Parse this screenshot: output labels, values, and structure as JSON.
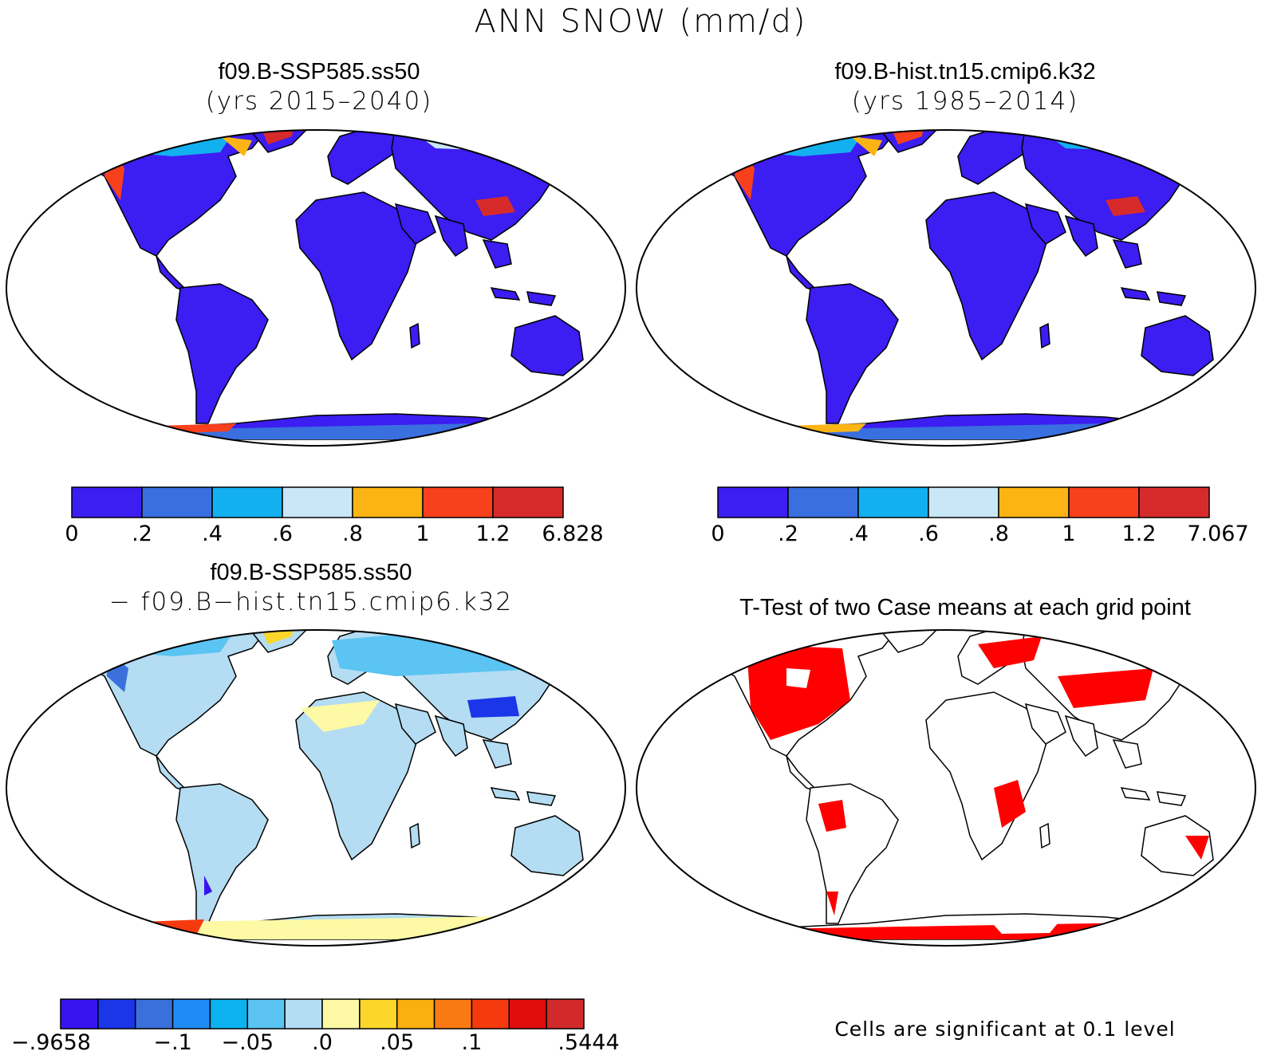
{
  "figure": {
    "title": "ANN SNOW (mm/d)"
  },
  "panels": [
    {
      "id": "case1",
      "title_line1": "f09.B-SSP585.ss50",
      "title_line2": "(yrs 2015–2040)",
      "colorbar": {
        "colors": [
          "#3c1df2",
          "#3a6fe0",
          "#13b0f0",
          "#c8e7f7",
          "#fbb413",
          "#f9401d",
          "#d72b2b"
        ],
        "labels": [
          "0",
          ".2",
          ".4",
          ".6",
          ".8",
          "1",
          "1.2",
          "6.828"
        ]
      }
    },
    {
      "id": "case2",
      "title_line1": "f09.B-hist.tn15.cmip6.k32",
      "title_line2": "(yrs 1985–2014)",
      "colorbar": {
        "colors": [
          "#3c1df2",
          "#3a6fe0",
          "#13b0f0",
          "#c8e7f7",
          "#fbb413",
          "#f9401d",
          "#d72b2b"
        ],
        "labels": [
          "0",
          ".2",
          ".4",
          ".6",
          ".8",
          "1",
          "1.2",
          "7.067"
        ]
      }
    },
    {
      "id": "diff",
      "title_line1": "f09.B-SSP585.ss50",
      "title_line2": "− f09.B−hist.tn15.cmip6.k32",
      "colorbar": {
        "colors": [
          "#3814f0",
          "#1a36e8",
          "#3b70dc",
          "#1f8cf5",
          "#0cb2f0",
          "#5bc4f2",
          "#b4dcf2",
          "#fdf9a5",
          "#fcd72b",
          "#fbaf11",
          "#f97a12",
          "#f53a10",
          "#e10c0c",
          "#d22a2a"
        ],
        "labels": [
          "−.9658",
          "−.1",
          "−.05",
          ".0",
          ".05",
          ".1",
          ".5444"
        ]
      }
    },
    {
      "id": "ttest",
      "title_line1": "T-Test of two Case means at each grid point",
      "note": "Cells are significant at 0.1 level"
    }
  ],
  "colors": {
    "ocean": "#ffffff",
    "land_low": "#3c1df2",
    "significant": "#ff0000",
    "diff_land": "#b4dcf2"
  }
}
